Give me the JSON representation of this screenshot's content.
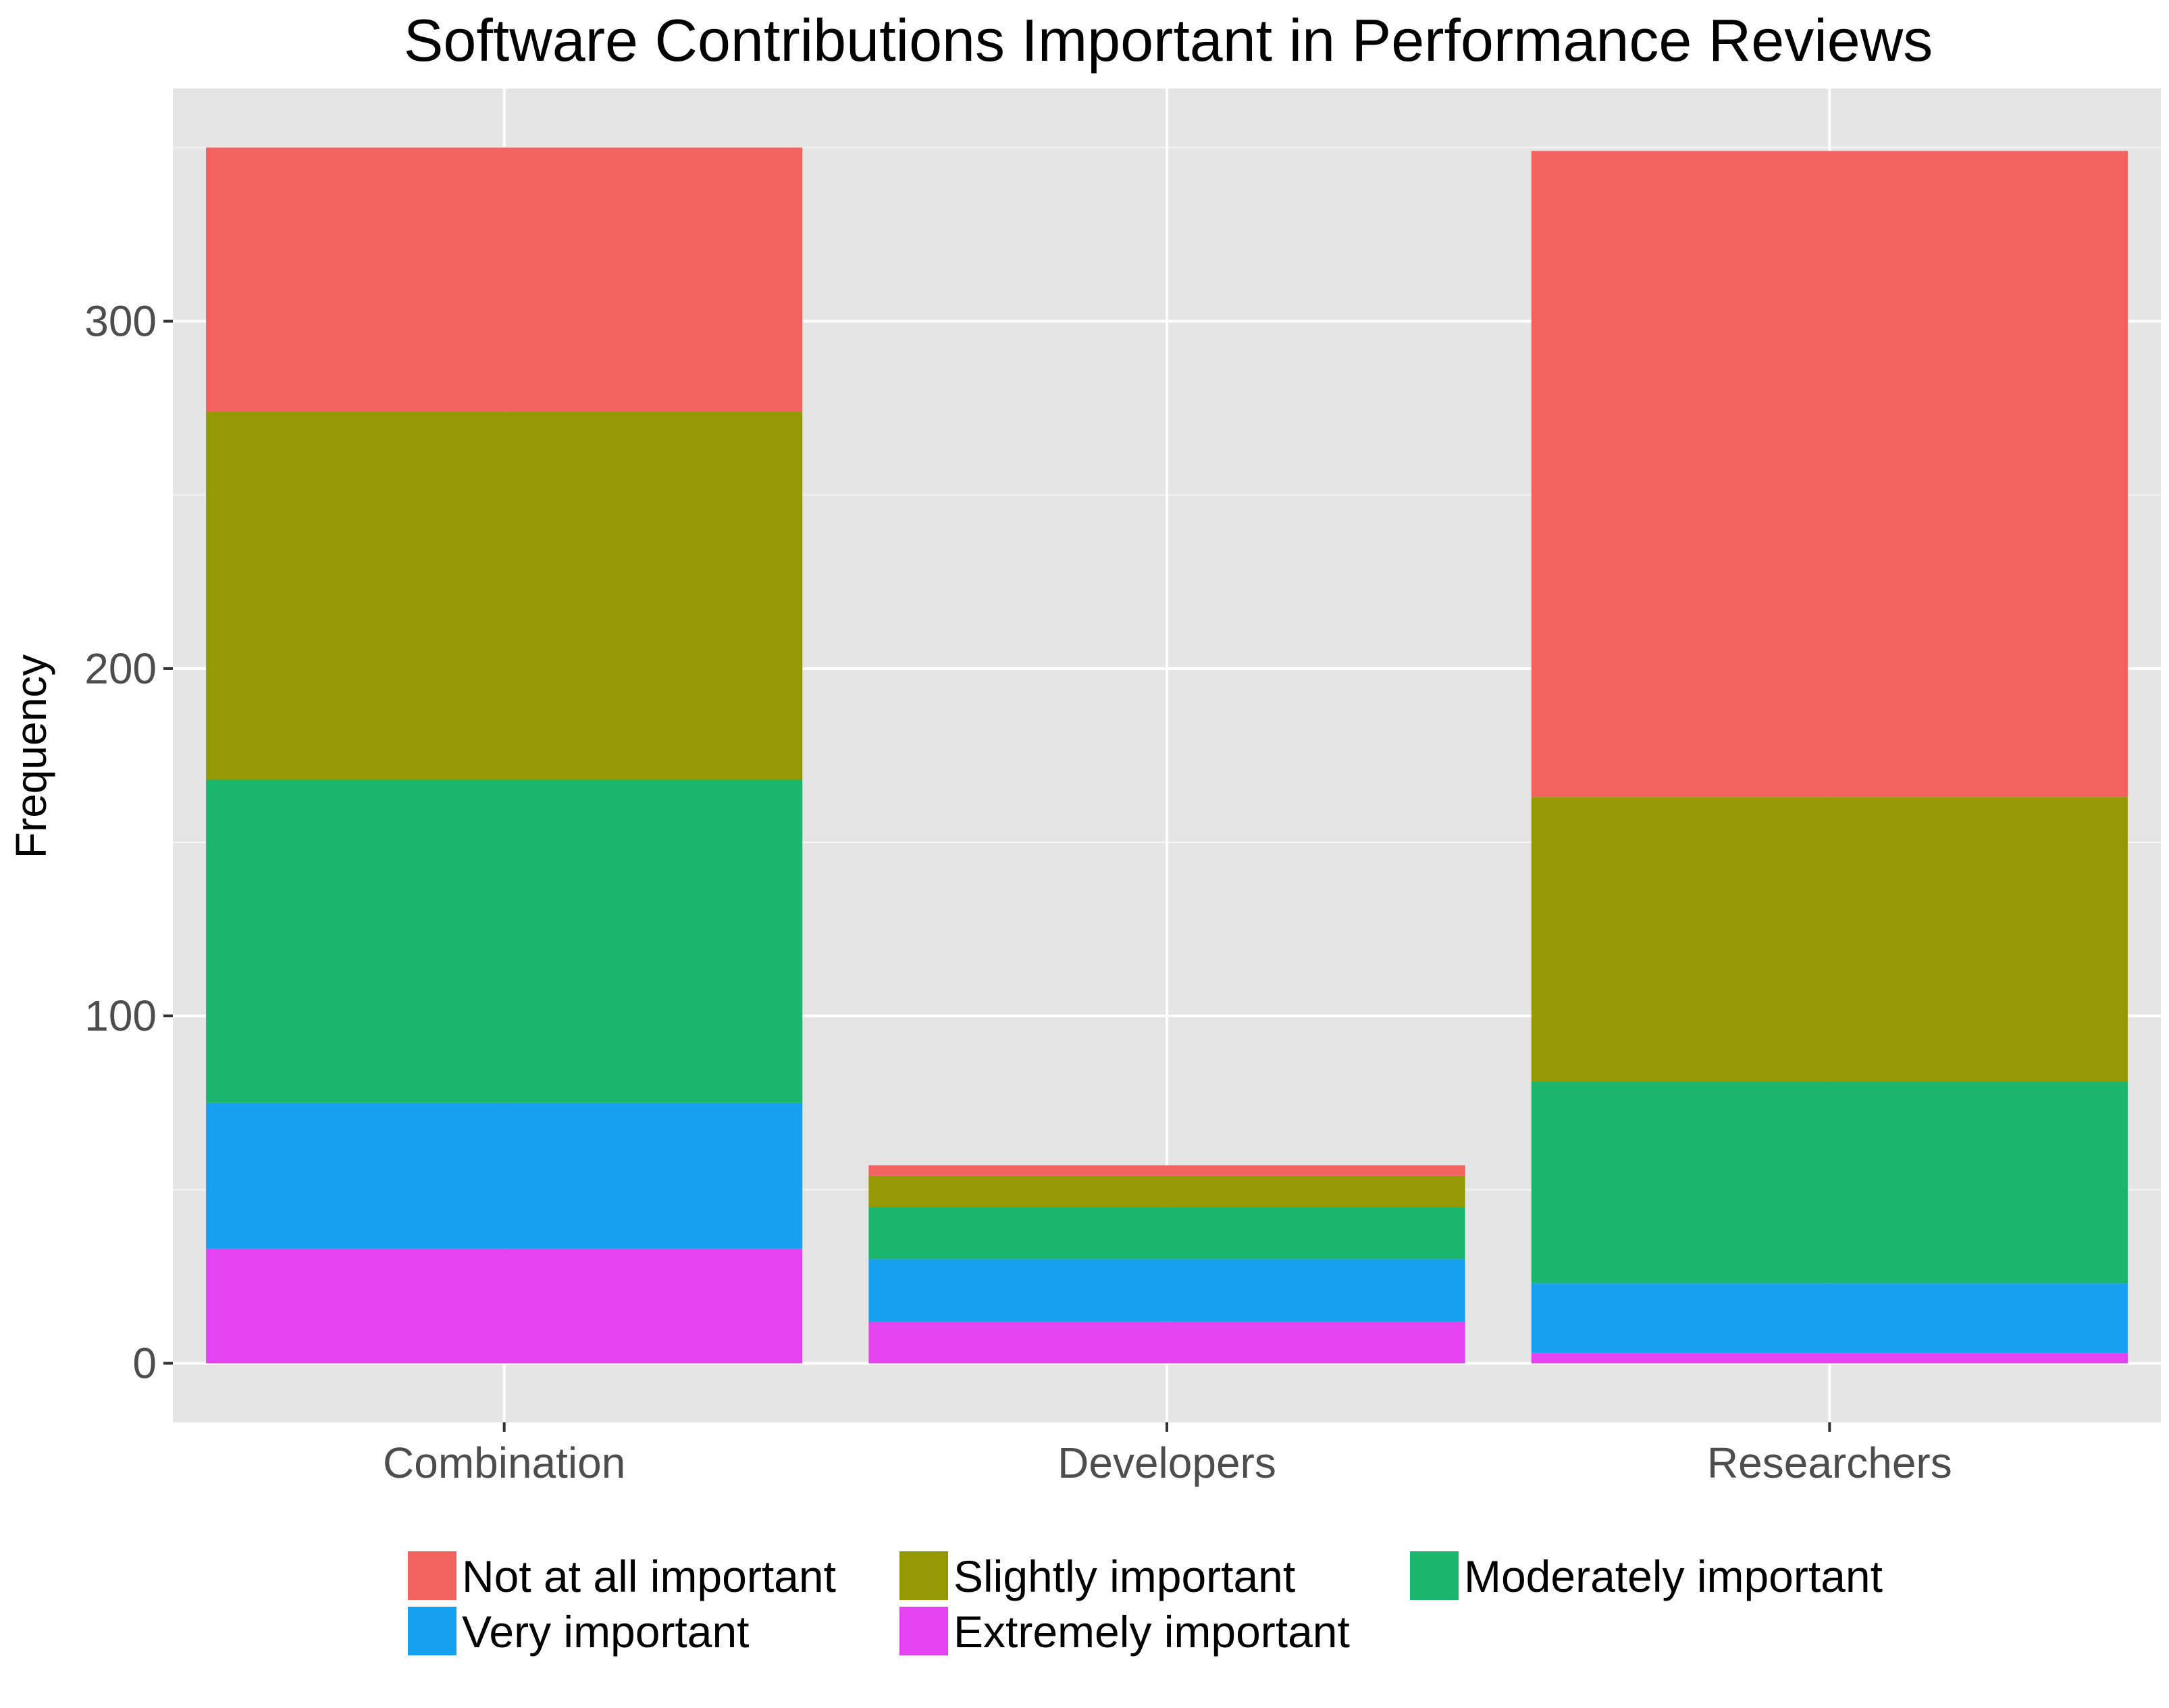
{
  "chart_data": {
    "type": "bar",
    "stacked": true,
    "title": "Software Contributions Important in Performance Reviews",
    "xlabel": "",
    "ylabel": "Frequency",
    "categories": [
      "Combination",
      "Developers",
      "Researchers"
    ],
    "ylim": [
      -17,
      367
    ],
    "yticks": [
      0,
      100,
      200,
      300
    ],
    "grid": true,
    "legend_position": "bottom",
    "series": [
      {
        "name": "Extremely important",
        "color": "#E444F0",
        "values": [
          33,
          12,
          3
        ]
      },
      {
        "name": "Very important",
        "color": "#16A0F0",
        "values": [
          42,
          18,
          20
        ]
      },
      {
        "name": "Moderately important",
        "color": "#1AB66C",
        "values": [
          93,
          15,
          58
        ]
      },
      {
        "name": "Slightly important",
        "color": "#939803",
        "values": [
          106,
          9,
          82
        ]
      },
      {
        "name": "Not at all important",
        "color": "#F2625E",
        "values": [
          76,
          3,
          186
        ]
      }
    ],
    "legend_order": [
      "Not at all important",
      "Slightly important",
      "Moderately important",
      "Very important",
      "Extremely important"
    ]
  }
}
